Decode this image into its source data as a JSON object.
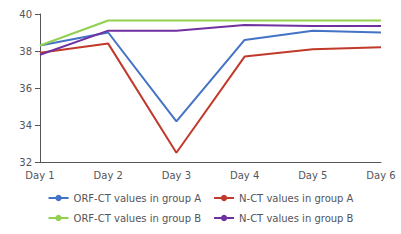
{
  "chart_data": {
    "type": "line",
    "categories": [
      "Day 1",
      "Day 2",
      "Day 3",
      "Day 4",
      "Day 5",
      "Day 6"
    ],
    "series": [
      {
        "name": "ORF-CT values in group A",
        "color": "#4472C4",
        "values": [
          38.3,
          39.0,
          34.2,
          38.6,
          39.1,
          39.0
        ]
      },
      {
        "name": "N-CT values in group A",
        "color": "#C0392B",
        "values": [
          37.9,
          38.4,
          32.5,
          37.7,
          38.1,
          38.2
        ]
      },
      {
        "name": "ORF-CT values in group B",
        "color": "#92D050",
        "values": [
          38.3,
          39.65,
          39.65,
          39.65,
          39.65,
          39.65
        ]
      },
      {
        "name": "N-CT values in group B",
        "color": "#7030A0",
        "values": [
          37.8,
          39.1,
          39.1,
          39.4,
          39.35,
          39.35
        ]
      }
    ],
    "ylim": [
      32,
      40
    ],
    "yticks": [
      32,
      34,
      36,
      38,
      40
    ],
    "grid": false,
    "legend": "bottom"
  }
}
